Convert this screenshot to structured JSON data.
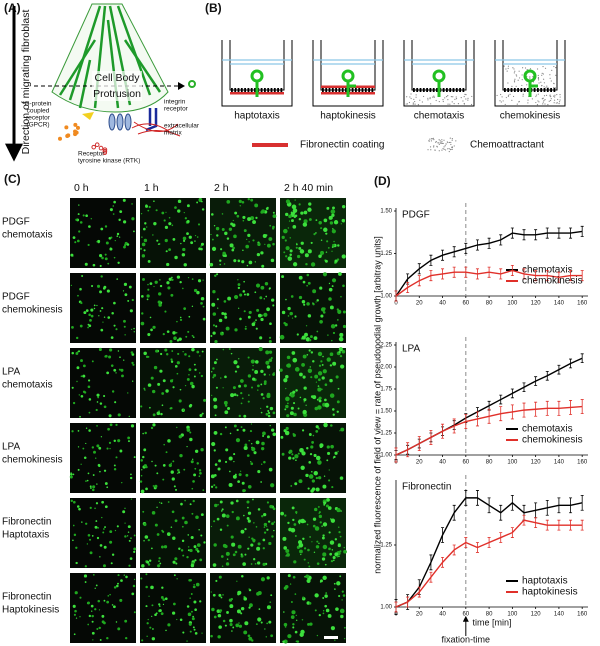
{
  "panel_a": {
    "label": "(A)",
    "direction": "Direction of migrating fibroblast",
    "cell_body": "Cell Body",
    "protrusion": "Protrusion",
    "integrin": [
      "integrin",
      "receptor"
    ],
    "matrix": [
      "extracellular",
      "matrix"
    ],
    "gpcr": [
      "G-protein",
      "coupled",
      "receptor",
      "(GPCR)"
    ],
    "rtk": [
      "Receptor",
      "tyrosine kinase (RTK)"
    ]
  },
  "panel_b": {
    "label": "(B)",
    "wells": [
      "haptotaxis",
      "haptokinesis",
      "chemotaxis",
      "chemokinesis"
    ],
    "legend": [
      "Fibronectin coating",
      "Chemoattractant"
    ]
  },
  "panel_c": {
    "label": "(C)",
    "times": [
      "0 h",
      "1 h",
      "2 h",
      "2 h 40 min"
    ],
    "rows": [
      [
        "PDGF",
        "chemotaxis"
      ],
      [
        "PDGF",
        "chemokinesis"
      ],
      [
        "LPA",
        "chemotaxis"
      ],
      [
        "LPA",
        "chemokinesis"
      ],
      [
        "Fibronectin",
        "Haptotaxis"
      ],
      [
        "Fibronectin",
        "Haptokinesis"
      ]
    ]
  },
  "panel_d": {
    "label": "(D)",
    "y_label": "normalized fluorescence of field of view = rate of pseudopodial growth [arbitray units]",
    "x_label": "time [min]",
    "annotation": "fixation-time"
  },
  "chart_data": [
    {
      "type": "line",
      "title": "PDGF",
      "x": [
        0,
        10,
        20,
        30,
        40,
        50,
        60,
        70,
        80,
        90,
        100,
        110,
        120,
        130,
        140,
        150,
        160
      ],
      "xlim": [
        0,
        165
      ],
      "xticks": [
        0,
        20,
        40,
        60,
        80,
        100,
        120,
        140,
        160
      ],
      "ylim": [
        1,
        1.5
      ],
      "yticks": [
        {
          "value": 1,
          "label": "1.00"
        },
        1.25,
        {
          "value": 1.5,
          "label": "1.50"
        }
      ],
      "vline": 60,
      "legend": "lower right",
      "series": [
        {
          "name": "chemotaxis",
          "color": "#000000",
          "error": 0.03,
          "values": [
            1.0,
            1.1,
            1.16,
            1.21,
            1.24,
            1.26,
            1.28,
            1.3,
            1.31,
            1.33,
            1.37,
            1.36,
            1.36,
            1.37,
            1.37,
            1.37,
            1.38
          ]
        },
        {
          "name": "chemokinesis",
          "color": "#e0302a",
          "error": 0.03,
          "values": [
            1.0,
            1.05,
            1.09,
            1.12,
            1.13,
            1.14,
            1.14,
            1.13,
            1.14,
            1.13,
            1.15,
            1.13,
            1.12,
            1.12,
            1.11,
            1.12,
            1.12
          ]
        }
      ]
    },
    {
      "type": "line",
      "title": "LPA",
      "x": [
        0,
        10,
        20,
        30,
        40,
        50,
        60,
        70,
        80,
        90,
        100,
        110,
        120,
        130,
        140,
        150,
        160
      ],
      "xlim": [
        0,
        165
      ],
      "xticks": [
        0,
        20,
        40,
        60,
        80,
        100,
        120,
        140,
        160
      ],
      "ylim": [
        1,
        2.25
      ],
      "yticks": [
        {
          "value": 1,
          "label": "1.00"
        },
        1.25,
        {
          "value": 1.5,
          "label": "1.50"
        },
        1.75,
        {
          "value": 2,
          "label": "2.00"
        },
        2.25
      ],
      "vline": 60,
      "legend": "lower right",
      "series": [
        {
          "name": "chemotaxis",
          "color": "#000000",
          "error": 0.05,
          "values": [
            1.0,
            1.06,
            1.13,
            1.2,
            1.27,
            1.34,
            1.42,
            1.49,
            1.56,
            1.63,
            1.7,
            1.77,
            1.84,
            1.9,
            1.97,
            2.04,
            2.1
          ]
        },
        {
          "name": "chemokinesis",
          "color": "#e0302a",
          "error": 0.08,
          "values": [
            1.0,
            1.06,
            1.13,
            1.2,
            1.27,
            1.33,
            1.38,
            1.41,
            1.44,
            1.47,
            1.49,
            1.51,
            1.52,
            1.53,
            1.53,
            1.54,
            1.55
          ]
        }
      ]
    },
    {
      "type": "line",
      "title": "Fibronectin",
      "x": [
        0,
        10,
        20,
        30,
        40,
        50,
        60,
        70,
        80,
        90,
        100,
        110,
        120,
        130,
        140,
        150,
        160
      ],
      "xlim": [
        0,
        165
      ],
      "xticks": [
        0,
        20,
        40,
        60,
        80,
        100,
        120,
        140,
        160
      ],
      "ylim": [
        1,
        1.5
      ],
      "yticks": [
        {
          "value": 1,
          "label": "1.00"
        },
        1.25
      ],
      "vline": 60,
      "legend": "lower right",
      "series": [
        {
          "name": "haptotaxis",
          "color": "#000000",
          "error": 0.03,
          "values": [
            1.0,
            1.02,
            1.08,
            1.18,
            1.29,
            1.38,
            1.44,
            1.44,
            1.41,
            1.38,
            1.42,
            1.38,
            1.39,
            1.4,
            1.41,
            1.41,
            1.42
          ]
        },
        {
          "name": "haptokinesis",
          "color": "#e0302a",
          "error": 0.02,
          "values": [
            1.0,
            1.02,
            1.06,
            1.12,
            1.18,
            1.23,
            1.26,
            1.24,
            1.26,
            1.28,
            1.3,
            1.35,
            1.34,
            1.33,
            1.33,
            1.33,
            1.33
          ]
        }
      ]
    }
  ]
}
